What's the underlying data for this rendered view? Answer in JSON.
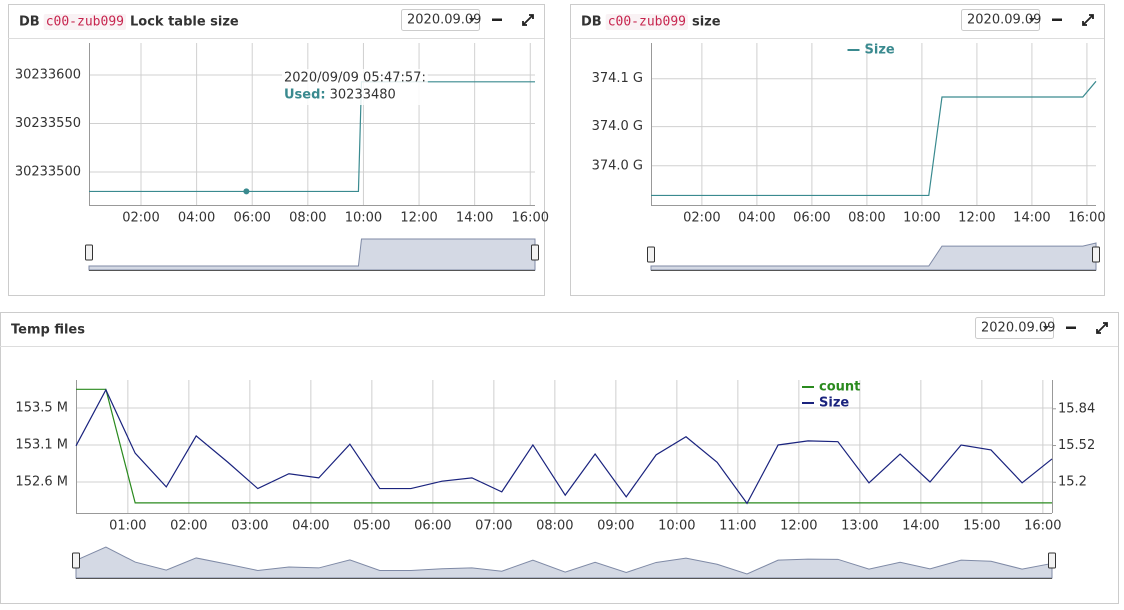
{
  "chart_data": [
    {
      "type": "line",
      "title_prefix": "DB",
      "title_code": "c00-zub099",
      "title": "Lock table size",
      "date": "2020.09.09",
      "xlim": [
        0.13,
        16.17
      ],
      "xticks": [
        {
          "value": 2,
          "label": "02:00"
        },
        {
          "value": 4,
          "label": "04:00"
        },
        {
          "value": 6,
          "label": "06:00"
        },
        {
          "value": 8,
          "label": "08:00"
        },
        {
          "value": 10,
          "label": "10:00"
        },
        {
          "value": 12,
          "label": "12:00"
        },
        {
          "value": 14,
          "label": "14:00"
        },
        {
          "value": 16,
          "label": "16:00"
        }
      ],
      "ylim": [
        30233466,
        30233633
      ],
      "yticks": [
        30233600,
        30233550,
        30233500
      ],
      "grid": true,
      "legend": false,
      "series": [
        {
          "name": "Used",
          "color": "#3a8a8f",
          "x": [
            0.13,
            9.82,
            9.93,
            16.17
          ],
          "values": [
            30233480,
            30233480,
            30233593,
            30233593
          ]
        }
      ],
      "tooltip": {
        "x": 5.79,
        "time": "2020/09/09 05:47:57:",
        "label": "Used:",
        "value": 30233480
      }
    },
    {
      "type": "line",
      "title_prefix": "DB",
      "title_code": "c00-zub099",
      "title": "size",
      "date": "2020.09.09",
      "xlim": [
        0.15,
        16.33
      ],
      "xticks": [
        {
          "value": 2,
          "label": "02:00"
        },
        {
          "value": 4,
          "label": "04:00"
        },
        {
          "value": 6,
          "label": "06:00"
        },
        {
          "value": 8,
          "label": "08:00"
        },
        {
          "value": 10,
          "label": "10:00"
        },
        {
          "value": 12,
          "label": "12:00"
        },
        {
          "value": 14,
          "label": "14:00"
        },
        {
          "value": 16,
          "label": "16:00"
        }
      ],
      "ylim": [
        373.955,
        374.141
      ],
      "yticks": [
        {
          "value": 374.1,
          "label": "374.1 G"
        },
        {
          "value": 374.045,
          "label": "374.0 G"
        },
        {
          "value": 374.0,
          "label": "374.0 G"
        }
      ],
      "grid": true,
      "legend": "top-center",
      "series": [
        {
          "name": "Size",
          "color": "#3a8a8f",
          "x": [
            0.15,
            10.25,
            10.73,
            15.85,
            16.33
          ],
          "values": [
            373.966,
            373.966,
            374.079,
            374.079,
            374.097
          ]
        }
      ]
    },
    {
      "type": "line",
      "title": "Temp files",
      "date": "2020.09.09",
      "xlim": [
        0.15,
        16.15
      ],
      "xticks": [
        {
          "value": 1,
          "label": "01:00"
        },
        {
          "value": 2,
          "label": "02:00"
        },
        {
          "value": 3,
          "label": "03:00"
        },
        {
          "value": 4,
          "label": "04:00"
        },
        {
          "value": 5,
          "label": "05:00"
        },
        {
          "value": 6,
          "label": "06:00"
        },
        {
          "value": 7,
          "label": "07:00"
        },
        {
          "value": 8,
          "label": "08:00"
        },
        {
          "value": 9,
          "label": "09:00"
        },
        {
          "value": 10,
          "label": "10:00"
        },
        {
          "value": 11,
          "label": "11:00"
        },
        {
          "value": 12,
          "label": "12:00"
        },
        {
          "value": 13,
          "label": "13:00"
        },
        {
          "value": 14,
          "label": "14:00"
        },
        {
          "value": 15,
          "label": "15:00"
        },
        {
          "value": 16,
          "label": "16:00"
        }
      ],
      "ylim": [
        152.223,
        153.84
      ],
      "yticks": [
        {
          "value": 153.5,
          "label": "153.5 M"
        },
        {
          "value": 153.05,
          "label": "153.1 M"
        },
        {
          "value": 152.6,
          "label": "152.6 M"
        }
      ],
      "y2lim": [
        14.932,
        16.091
      ],
      "y2ticks": [
        15.84,
        15.52,
        15.2
      ],
      "grid": true,
      "legend": "top-right",
      "series": [
        {
          "name": "count",
          "color": "#2a8a1e",
          "axis": "y2",
          "x": [
            0.15,
            0.64,
            1.12,
            16.15
          ],
          "values": [
            16.01,
            16.01,
            15.02,
            15.02
          ]
        },
        {
          "name": "Size",
          "color": "#1a237e",
          "x": [
            0.15,
            0.64,
            1.12,
            1.63,
            2.12,
            2.64,
            3.13,
            3.64,
            4.13,
            4.64,
            5.13,
            5.64,
            6.15,
            6.64,
            7.13,
            7.64,
            8.17,
            8.66,
            9.17,
            9.66,
            10.15,
            10.66,
            11.15,
            11.66,
            12.15,
            12.64,
            13.15,
            13.66,
            14.15,
            14.66,
            15.15,
            15.66,
            16.15
          ],
          "values": [
            153.04,
            153.72,
            152.95,
            152.54,
            153.16,
            152.84,
            152.52,
            152.7,
            152.65,
            153.06,
            152.52,
            152.52,
            152.61,
            152.65,
            152.48,
            153.05,
            152.44,
            152.94,
            152.42,
            152.93,
            153.15,
            152.84,
            152.34,
            153.05,
            153.1,
            153.09,
            152.59,
            152.94,
            152.6,
            153.05,
            152.99,
            152.59,
            152.88
          ]
        }
      ]
    }
  ]
}
